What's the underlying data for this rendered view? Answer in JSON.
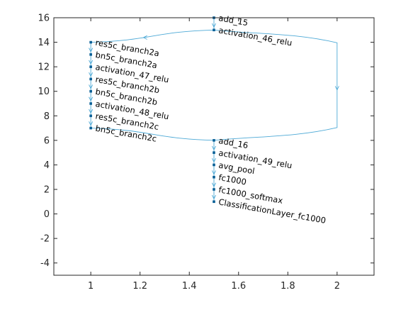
{
  "chart_data": {
    "type": "graph",
    "title": "",
    "xlabel": "",
    "ylabel": "",
    "xlim": [
      0.85,
      2.15
    ],
    "ylim": [
      -5,
      16
    ],
    "x_ticks": [
      1,
      1.2,
      1.4,
      1.6,
      1.8,
      2
    ],
    "x_tick_labels": [
      "1",
      "1.2",
      "1.4",
      "1.6",
      "1.8",
      "2"
    ],
    "y_ticks": [
      -4,
      -2,
      0,
      2,
      4,
      6,
      8,
      10,
      12,
      14,
      16
    ],
    "y_tick_labels": [
      "-4",
      "-2",
      "0",
      "2",
      "4",
      "6",
      "8",
      "10",
      "12",
      "14",
      "16"
    ],
    "grid": false,
    "colors": {
      "edge": "#4da9d6",
      "node": "#0a5f96",
      "axis": "#262626"
    },
    "nodes": [
      {
        "name": "add_15",
        "x": 1.5,
        "y": 16
      },
      {
        "name": "activation_46_relu",
        "x": 1.5,
        "y": 15
      },
      {
        "name": "res5c_branch2a",
        "x": 1,
        "y": 14
      },
      {
        "name": "bn5c_branch2a",
        "x": 1,
        "y": 13
      },
      {
        "name": "activation_47_relu",
        "x": 1,
        "y": 12
      },
      {
        "name": "res5c_branch2b",
        "x": 1,
        "y": 11
      },
      {
        "name": "bn5c_branch2b",
        "x": 1,
        "y": 10
      },
      {
        "name": "activation_48_relu",
        "x": 1,
        "y": 9
      },
      {
        "name": "res5c_branch2c",
        "x": 1,
        "y": 8
      },
      {
        "name": "bn5c_branch2c",
        "x": 1,
        "y": 7
      },
      {
        "name": "add_16",
        "x": 1.5,
        "y": 6
      },
      {
        "name": "activation_49_relu",
        "x": 1.5,
        "y": 5
      },
      {
        "name": "avg_pool",
        "x": 1.5,
        "y": 4
      },
      {
        "name": "fc1000",
        "x": 1.5,
        "y": 3
      },
      {
        "name": "fc1000_softmax",
        "x": 1.5,
        "y": 2
      },
      {
        "name": "ClassificationLayer_fc1000",
        "x": 1.5,
        "y": 1
      }
    ],
    "edges": [
      [
        "add_15",
        "activation_46_relu"
      ],
      [
        "activation_46_relu",
        "res5c_branch2a"
      ],
      [
        "activation_46_relu",
        "add_16"
      ],
      [
        "res5c_branch2a",
        "bn5c_branch2a"
      ],
      [
        "bn5c_branch2a",
        "activation_47_relu"
      ],
      [
        "activation_47_relu",
        "res5c_branch2b"
      ],
      [
        "res5c_branch2b",
        "bn5c_branch2b"
      ],
      [
        "bn5c_branch2b",
        "activation_48_relu"
      ],
      [
        "activation_48_relu",
        "res5c_branch2c"
      ],
      [
        "res5c_branch2c",
        "bn5c_branch2c"
      ],
      [
        "bn5c_branch2c",
        "add_16"
      ],
      [
        "add_16",
        "activation_49_relu"
      ],
      [
        "activation_49_relu",
        "avg_pool"
      ],
      [
        "avg_pool",
        "fc1000"
      ],
      [
        "fc1000",
        "fc1000_softmax"
      ],
      [
        "fc1000_softmax",
        "ClassificationLayer_fc1000"
      ]
    ]
  }
}
